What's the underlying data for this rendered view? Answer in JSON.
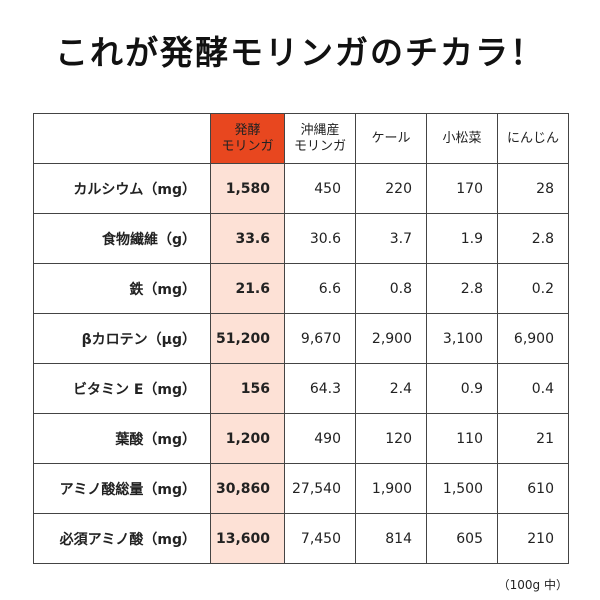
{
  "title": "これが発酵モリンガのチカラ！",
  "table": {
    "headers": [
      {
        "line1": "発酵",
        "line2": "モリンガ"
      },
      {
        "line1": "沖縄産",
        "line2": "モリンガ"
      },
      {
        "line1": "ケール",
        "line2": ""
      },
      {
        "line1": "小松菜",
        "line2": ""
      },
      {
        "line1": "にんじん",
        "line2": ""
      }
    ],
    "rows": [
      {
        "label": "カルシウム（mg）",
        "values": [
          "1,580",
          "450",
          "220",
          "170",
          "28"
        ]
      },
      {
        "label": "食物繊維（g）",
        "values": [
          "33.6",
          "30.6",
          "3.7",
          "1.9",
          "2.8"
        ]
      },
      {
        "label": "鉄（mg）",
        "values": [
          "21.6",
          "6.6",
          "0.8",
          "2.8",
          "0.2"
        ]
      },
      {
        "label": "βカロテン（μg）",
        "values": [
          "51,200",
          "9,670",
          "2,900",
          "3,100",
          "6,900"
        ]
      },
      {
        "label": "ビタミン E（mg）",
        "values": [
          "156",
          "64.3",
          "2.4",
          "0.9",
          "0.4"
        ]
      },
      {
        "label": "葉酸（mg）",
        "values": [
          "1,200",
          "490",
          "120",
          "110",
          "21"
        ]
      },
      {
        "label": "アミノ酸総量（mg）",
        "values": [
          "30,860",
          "27,540",
          "1,900",
          "1,500",
          "610"
        ]
      },
      {
        "label": "必須アミノ酸（mg）",
        "values": [
          "13,600",
          "7,450",
          "814",
          "605",
          "210"
        ]
      }
    ]
  },
  "colors": {
    "highlight_header": "#e8471f",
    "highlight_cell": "#fde1d6"
  },
  "note": "（100g 中）"
}
